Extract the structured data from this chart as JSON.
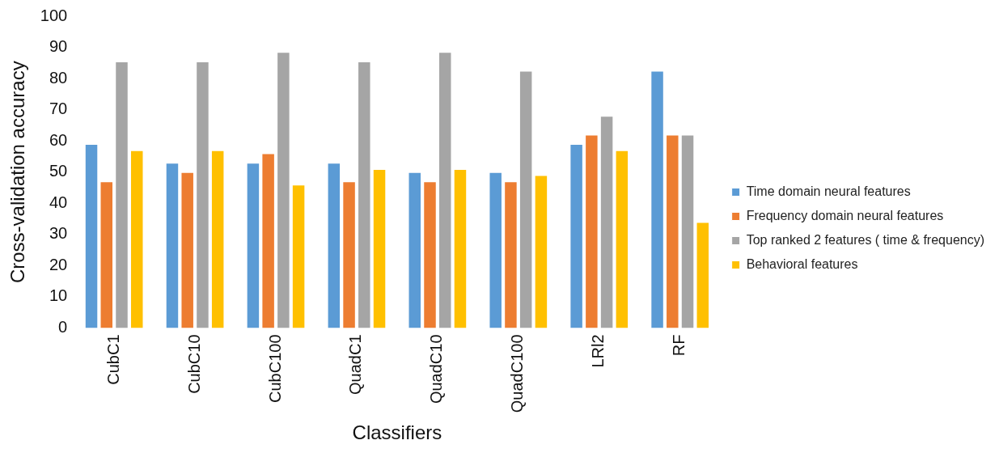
{
  "chart_data": {
    "type": "bar",
    "xlabel": "Classifiers",
    "ylabel": "Cross-validation accuracy",
    "categories": [
      "CubC1",
      "CubC10",
      "CubC100",
      "QuadC1",
      "QuadC10",
      "QuadC100",
      "LRl2",
      "RF"
    ],
    "series": [
      {
        "name": "Time domain neural features",
        "color": "#5b9bd5",
        "values": [
          59,
          53,
          53,
          53,
          50,
          50,
          59,
          82.5
        ]
      },
      {
        "name": "Frequency domain neural features",
        "color": "#ed7d31",
        "values": [
          47,
          50,
          56,
          47,
          47,
          47,
          62,
          62
        ]
      },
      {
        "name": "Top ranked 2 features ( time & frequency)",
        "color": "#a5a5a5",
        "values": [
          85.5,
          85.5,
          88.5,
          85.5,
          88.5,
          82.5,
          68,
          62
        ]
      },
      {
        "name": "Behavioral features",
        "color": "#ffc000",
        "values": [
          57,
          57,
          46,
          51,
          51,
          49,
          57,
          34
        ]
      }
    ],
    "ylim": [
      0,
      100
    ],
    "yticks": [
      0,
      10,
      20,
      30,
      40,
      50,
      60,
      70,
      80,
      90,
      100
    ],
    "grid": false,
    "legend": "right"
  }
}
